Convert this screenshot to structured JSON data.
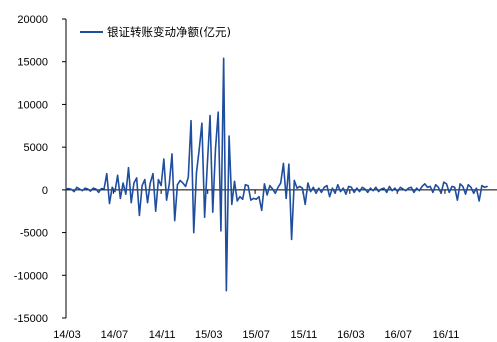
{
  "chart_data": {
    "type": "line",
    "legend": {
      "label": "银证转账变动净额(亿元)",
      "placement": "top-left",
      "color": "#1F4E9E"
    },
    "ylim": [
      -15000,
      20000
    ],
    "yticks": [
      20000,
      15000,
      10000,
      5000,
      0,
      -5000,
      -10000,
      -15000
    ],
    "ytick_labels": [
      "20000",
      "15000",
      "10000",
      "5000",
      "0",
      "-5000",
      "-10000",
      "-15000"
    ],
    "xlim": [
      "2014-03-01",
      "2017-03-15"
    ],
    "xticks": [
      "2014-03-01",
      "2014-07-01",
      "2014-11-01",
      "2015-03-01",
      "2015-07-01",
      "2015-11-01",
      "2016-03-01",
      "2016-07-01",
      "2016-11-01"
    ],
    "xtick_labels": [
      "14/03",
      "14/07",
      "14/11",
      "15/03",
      "15/07",
      "15/11",
      "16/03",
      "16/07",
      "16/11"
    ],
    "grid": false,
    "series": [
      {
        "color": "#1F4E9E",
        "points": [
          [
            "2014-03-01",
            100
          ],
          [
            "2014-03-08",
            150
          ],
          [
            "2014-03-15",
            50
          ],
          [
            "2014-03-22",
            -200
          ],
          [
            "2014-03-29",
            300
          ],
          [
            "2014-04-05",
            100
          ],
          [
            "2014-04-12",
            -100
          ],
          [
            "2014-04-19",
            200
          ],
          [
            "2014-04-26",
            100
          ],
          [
            "2014-05-03",
            -150
          ],
          [
            "2014-05-10",
            200
          ],
          [
            "2014-05-17",
            100
          ],
          [
            "2014-05-24",
            -300
          ],
          [
            "2014-05-31",
            150
          ],
          [
            "2014-06-07",
            100
          ],
          [
            "2014-06-14",
            1900
          ],
          [
            "2014-06-21",
            -1600
          ],
          [
            "2014-06-28",
            300
          ],
          [
            "2014-07-05",
            -200
          ],
          [
            "2014-07-12",
            1700
          ],
          [
            "2014-07-19",
            -1000
          ],
          [
            "2014-07-26",
            800
          ],
          [
            "2014-08-02",
            -500
          ],
          [
            "2014-08-09",
            2600
          ],
          [
            "2014-08-16",
            -1500
          ],
          [
            "2014-08-23",
            800
          ],
          [
            "2014-08-30",
            1400
          ],
          [
            "2014-09-06",
            -3000
          ],
          [
            "2014-09-13",
            500
          ],
          [
            "2014-09-20",
            1200
          ],
          [
            "2014-09-27",
            -1500
          ],
          [
            "2014-10-04",
            800
          ],
          [
            "2014-10-11",
            1900
          ],
          [
            "2014-10-18",
            -2500
          ],
          [
            "2014-10-25",
            1200
          ],
          [
            "2014-11-01",
            500
          ],
          [
            "2014-11-08",
            3600
          ],
          [
            "2014-11-15",
            -1200
          ],
          [
            "2014-11-22",
            700
          ],
          [
            "2014-11-29",
            4200
          ],
          [
            "2014-12-06",
            -3600
          ],
          [
            "2014-12-13",
            600
          ],
          [
            "2014-12-20",
            1100
          ],
          [
            "2014-12-27",
            800
          ],
          [
            "2015-01-03",
            400
          ],
          [
            "2015-01-10",
            1500
          ],
          [
            "2015-01-17",
            8100
          ],
          [
            "2015-01-24",
            -5000
          ],
          [
            "2015-01-31",
            2000
          ],
          [
            "2015-02-07",
            4700
          ],
          [
            "2015-02-14",
            7800
          ],
          [
            "2015-02-21",
            -3200
          ],
          [
            "2015-02-28",
            3000
          ],
          [
            "2015-03-07",
            8700
          ],
          [
            "2015-03-14",
            -2600
          ],
          [
            "2015-03-21",
            4800
          ],
          [
            "2015-03-28",
            9100
          ],
          [
            "2015-04-04",
            -4800
          ],
          [
            "2015-04-11",
            15400
          ],
          [
            "2015-04-18",
            -11800
          ],
          [
            "2015-04-25",
            6300
          ],
          [
            "2015-05-02",
            -1700
          ],
          [
            "2015-05-09",
            1000
          ],
          [
            "2015-05-16",
            -1300
          ],
          [
            "2015-05-23",
            -800
          ],
          [
            "2015-05-30",
            -1100
          ],
          [
            "2015-06-06",
            600
          ],
          [
            "2015-06-13",
            500
          ],
          [
            "2015-06-20",
            -1200
          ],
          [
            "2015-06-27",
            -1000
          ],
          [
            "2015-07-04",
            -1100
          ],
          [
            "2015-07-11",
            -800
          ],
          [
            "2015-07-18",
            -2400
          ],
          [
            "2015-07-25",
            700
          ],
          [
            "2015-08-01",
            -600
          ],
          [
            "2015-08-08",
            500
          ],
          [
            "2015-08-15",
            100
          ],
          [
            "2015-08-22",
            -400
          ],
          [
            "2015-08-29",
            300
          ],
          [
            "2015-09-05",
            800
          ],
          [
            "2015-09-12",
            3100
          ],
          [
            "2015-09-19",
            -1000
          ],
          [
            "2015-09-26",
            3000
          ],
          [
            "2015-10-03",
            -5800
          ],
          [
            "2015-10-10",
            1100
          ],
          [
            "2015-10-17",
            200
          ],
          [
            "2015-10-24",
            400
          ],
          [
            "2015-10-31",
            200
          ],
          [
            "2015-11-07",
            -1700
          ],
          [
            "2015-11-14",
            800
          ],
          [
            "2015-11-21",
            -200
          ],
          [
            "2015-11-28",
            300
          ],
          [
            "2015-12-05",
            -400
          ],
          [
            "2015-12-12",
            200
          ],
          [
            "2015-12-19",
            -300
          ],
          [
            "2015-12-26",
            300
          ],
          [
            "2016-01-02",
            500
          ],
          [
            "2016-01-09",
            -800
          ],
          [
            "2016-01-16",
            200
          ],
          [
            "2016-01-23",
            -400
          ],
          [
            "2016-01-30",
            600
          ],
          [
            "2016-02-06",
            -200
          ],
          [
            "2016-02-13",
            200
          ],
          [
            "2016-02-20",
            -500
          ],
          [
            "2016-02-27",
            400
          ],
          [
            "2016-03-05",
            300
          ],
          [
            "2016-03-12",
            -300
          ],
          [
            "2016-03-19",
            200
          ],
          [
            "2016-03-26",
            -200
          ],
          [
            "2016-04-02",
            300
          ],
          [
            "2016-04-09",
            100
          ],
          [
            "2016-04-16",
            -300
          ],
          [
            "2016-04-23",
            200
          ],
          [
            "2016-04-30",
            -100
          ],
          [
            "2016-05-07",
            300
          ],
          [
            "2016-05-14",
            -200
          ],
          [
            "2016-05-21",
            100
          ],
          [
            "2016-05-28",
            200
          ],
          [
            "2016-06-04",
            -300
          ],
          [
            "2016-06-11",
            400
          ],
          [
            "2016-06-18",
            -100
          ],
          [
            "2016-06-25",
            200
          ],
          [
            "2016-07-02",
            -200
          ],
          [
            "2016-07-09",
            300
          ],
          [
            "2016-07-16",
            100
          ],
          [
            "2016-07-23",
            -100
          ],
          [
            "2016-07-30",
            200
          ],
          [
            "2016-08-06",
            300
          ],
          [
            "2016-08-13",
            -300
          ],
          [
            "2016-08-20",
            200
          ],
          [
            "2016-08-27",
            -100
          ],
          [
            "2016-09-03",
            400
          ],
          [
            "2016-09-10",
            700
          ],
          [
            "2016-09-17",
            300
          ],
          [
            "2016-09-24",
            400
          ],
          [
            "2016-10-01",
            -300
          ],
          [
            "2016-10-08",
            600
          ],
          [
            "2016-10-15",
            300
          ],
          [
            "2016-10-22",
            -400
          ],
          [
            "2016-10-29",
            900
          ],
          [
            "2016-11-05",
            700
          ],
          [
            "2016-11-12",
            -300
          ],
          [
            "2016-11-19",
            400
          ],
          [
            "2016-11-26",
            300
          ],
          [
            "2016-12-03",
            -1200
          ],
          [
            "2016-12-10",
            700
          ],
          [
            "2016-12-17",
            400
          ],
          [
            "2016-12-24",
            -500
          ],
          [
            "2016-12-31",
            600
          ],
          [
            "2017-01-07",
            300
          ],
          [
            "2017-01-14",
            -400
          ],
          [
            "2017-01-21",
            200
          ],
          [
            "2017-01-28",
            -1300
          ],
          [
            "2017-02-04",
            500
          ],
          [
            "2017-02-11",
            300
          ],
          [
            "2017-02-18",
            400
          ]
        ]
      }
    ]
  }
}
